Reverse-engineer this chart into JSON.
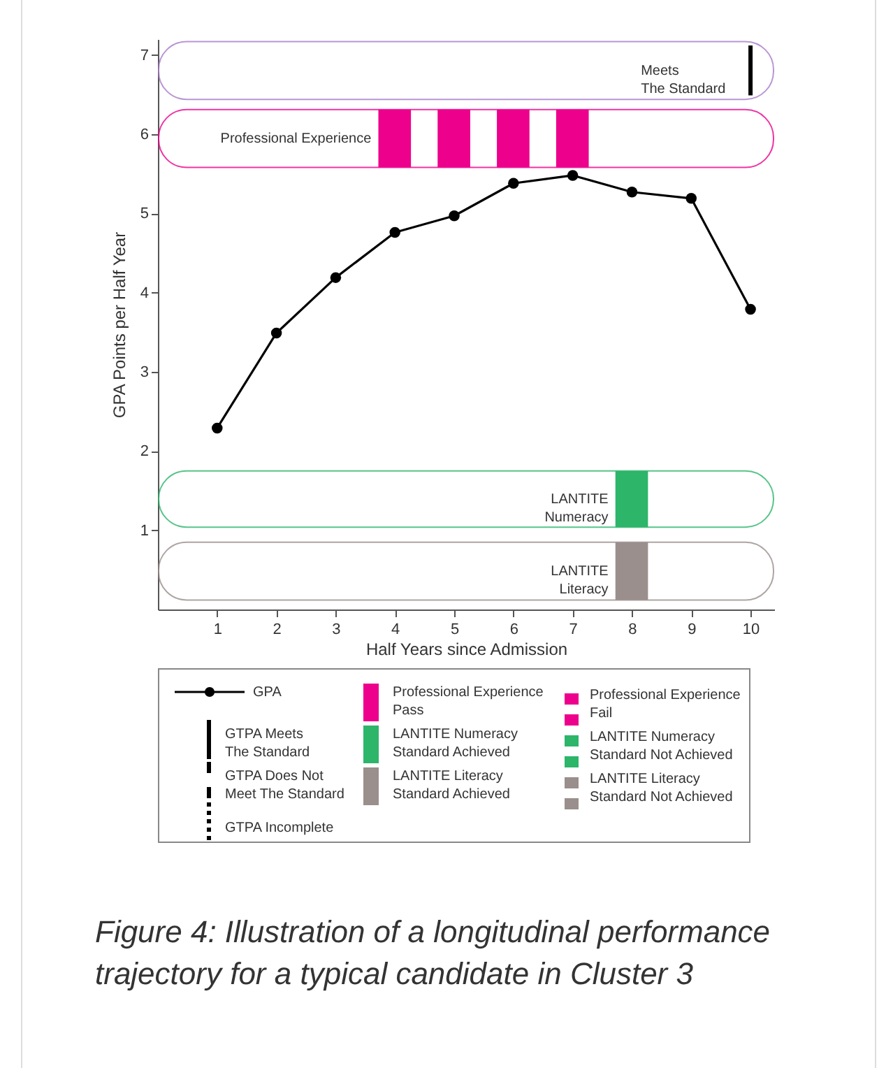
{
  "chart_data": {
    "type": "line",
    "xlabel": "Half Years since Admission",
    "ylabel": "GPA Points per Half Year",
    "x": [
      1,
      2,
      3,
      4,
      5,
      6,
      7,
      8,
      9,
      10
    ],
    "series": [
      {
        "name": "GPA",
        "color": "#000000",
        "values": [
          2.29,
          3.49,
          4.19,
          4.76,
          4.97,
          5.38,
          5.48,
          5.27,
          5.19,
          3.79
        ]
      }
    ],
    "xlim": [
      0,
      10.4
    ],
    "xticks": [
      1,
      2,
      3,
      4,
      5,
      6,
      7,
      8,
      9,
      10
    ],
    "ylim": [
      0,
      7.2
    ],
    "yticks": [
      1,
      2,
      3,
      4,
      5,
      6,
      7
    ],
    "marker": "circle",
    "line_style": "solid",
    "legend": "bottom",
    "bands": [
      {
        "axis": "x",
        "from": 3.72,
        "to": 4.27,
        "label": "Professional Experience",
        "color": "#ec008c"
      },
      {
        "axis": "x",
        "from": 4.72,
        "to": 5.27,
        "label": null,
        "color": "#ec008c"
      },
      {
        "axis": "x",
        "from": 5.72,
        "to": 6.27,
        "label": null,
        "color": "#ec008c"
      },
      {
        "axis": "x",
        "from": 6.72,
        "to": 7.27,
        "label": null,
        "color": "#ec008c"
      },
      {
        "axis": "x",
        "from": 7.72,
        "to": 8.27,
        "label": "LANTITE\nNumeracy",
        "color": "#2db56a"
      },
      {
        "axis": "x",
        "from": 7.72,
        "to": 8.27,
        "label": "LANTITE\nLiteracy",
        "color": "#9a8f8c"
      }
    ],
    "ref_lines": [
      {
        "axis": "x",
        "value": 10,
        "label": "Meets\nThe Standard",
        "color": "#000000",
        "line_style": "solid"
      }
    ],
    "annotations": [
      "GTPA Meets\nThe Standard",
      "GTPA Does Not\nMeet The Standard",
      "GTPA Incomplete",
      "Professional Experience\nPass",
      "LANTITE Numeracy\nStandard Achieved",
      "LANTITE Literacy\nStandard Achieved",
      "Professional Experience\nFail",
      "LANTITE Numeracy\nStandard Not Achieved",
      "LANTITE Literacy\nStandard Not Achieved",
      "Figure 4: Illustration of a longitudinal performance trajectory for a typical candidate in Cluster 3"
    ]
  }
}
